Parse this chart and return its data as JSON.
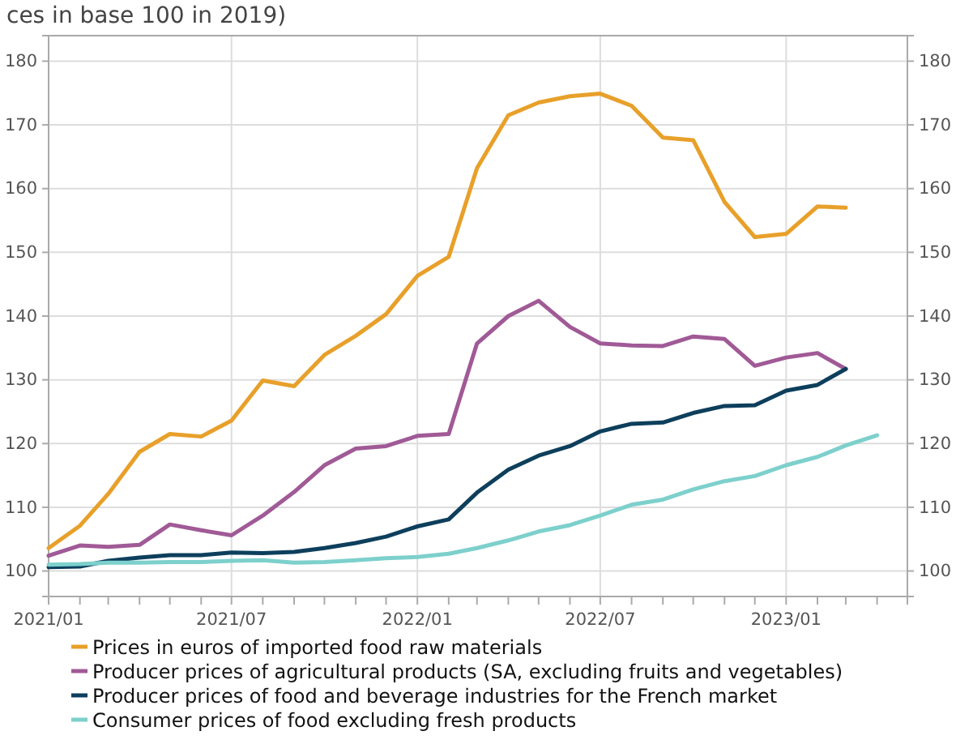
{
  "chart_data": {
    "type": "line",
    "title": "ces in base 100 in 2019)",
    "x": [
      "2021-01",
      "2021-02",
      "2021-03",
      "2021-04",
      "2021-05",
      "2021-06",
      "2021-07",
      "2021-08",
      "2021-09",
      "2021-10",
      "2021-11",
      "2021-12",
      "2022-01",
      "2022-02",
      "2022-03",
      "2022-04",
      "2022-05",
      "2022-06",
      "2022-07",
      "2022-08",
      "2022-09",
      "2022-10",
      "2022-11",
      "2022-12",
      "2023-01",
      "2023-02",
      "2023-03",
      "2023-04"
    ],
    "series": [
      {
        "name": "Prices in euros of imported food raw materials",
        "color": "#e8a02a",
        "values": [
          103.6,
          107.1,
          112.1,
          118.7,
          121.5,
          121.1,
          123.6,
          129.9,
          129.0,
          133.9,
          136.9,
          140.3,
          146.3,
          149.3,
          163.2,
          171.5,
          173.5,
          174.5,
          174.9,
          173.0,
          168.0,
          167.6,
          157.9,
          152.4,
          152.9,
          157.2,
          157.0,
          null
        ]
      },
      {
        "name": "Producer prices of agricultural products (SA, excluding fruits and vegetables)",
        "color": "#a05a96",
        "values": [
          102.4,
          104.0,
          103.8,
          104.1,
          107.3,
          106.4,
          105.6,
          108.7,
          112.4,
          116.6,
          119.2,
          119.6,
          121.2,
          121.5,
          135.7,
          140.0,
          142.4,
          138.3,
          135.7,
          135.4,
          135.3,
          136.8,
          136.4,
          132.2,
          133.5,
          134.2,
          131.7,
          null
        ]
      },
      {
        "name": "Producer prices of food and beverage industries for the French market",
        "color": "#0d3f5c",
        "values": [
          100.6,
          100.7,
          101.6,
          102.1,
          102.5,
          102.5,
          102.9,
          102.8,
          103.0,
          103.6,
          104.4,
          105.4,
          107.0,
          108.1,
          112.3,
          115.9,
          118.1,
          119.6,
          121.9,
          123.1,
          123.3,
          124.8,
          125.9,
          126.0,
          128.3,
          129.2,
          131.7,
          null
        ]
      },
      {
        "name": "Consumer prices of food excluding fresh products",
        "color": "#7dd0cc",
        "values": [
          101.0,
          101.1,
          101.3,
          101.3,
          101.4,
          101.4,
          101.6,
          101.7,
          101.3,
          101.4,
          101.7,
          102.0,
          102.2,
          102.7,
          103.6,
          104.8,
          106.2,
          107.2,
          108.7,
          110.4,
          111.2,
          112.8,
          114.1,
          114.9,
          116.6,
          117.9,
          119.7,
          121.3
        ]
      }
    ],
    "xlim": [
      "2021-01",
      "2023-05"
    ],
    "xticks": [
      {
        "value": "2021-01",
        "label": "2021/01"
      },
      {
        "value": "2021-02",
        "label": null
      },
      {
        "value": "2021-03",
        "label": null
      },
      {
        "value": "2021-04",
        "label": null
      },
      {
        "value": "2021-05",
        "label": null
      },
      {
        "value": "2021-06",
        "label": null
      },
      {
        "value": "2021-07",
        "label": "2021/07"
      },
      {
        "value": "2021-08",
        "label": null
      },
      {
        "value": "2021-09",
        "label": null
      },
      {
        "value": "2021-10",
        "label": null
      },
      {
        "value": "2021-11",
        "label": null
      },
      {
        "value": "2021-12",
        "label": null
      },
      {
        "value": "2022-01",
        "label": "2022/01"
      },
      {
        "value": "2022-02",
        "label": null
      },
      {
        "value": "2022-03",
        "label": null
      },
      {
        "value": "2022-04",
        "label": null
      },
      {
        "value": "2022-05",
        "label": null
      },
      {
        "value": "2022-06",
        "label": null
      },
      {
        "value": "2022-07",
        "label": "2022/07"
      },
      {
        "value": "2022-08",
        "label": null
      },
      {
        "value": "2022-09",
        "label": null
      },
      {
        "value": "2022-10",
        "label": null
      },
      {
        "value": "2022-11",
        "label": null
      },
      {
        "value": "2022-12",
        "label": null
      },
      {
        "value": "2023-01",
        "label": "2023/01"
      },
      {
        "value": "2023-02",
        "label": null
      },
      {
        "value": "2023-03",
        "label": null
      },
      {
        "value": "2023-04",
        "label": null
      },
      {
        "value": "2023-05",
        "label": null
      }
    ],
    "ylim": [
      96,
      184
    ],
    "yticks": [
      100,
      110,
      120,
      130,
      140,
      150,
      160,
      170,
      180
    ],
    "y2lim": [
      96,
      184
    ],
    "y2ticks": [
      100,
      110,
      120,
      130,
      140,
      150,
      160,
      170,
      180
    ],
    "grid": true,
    "legend": "bottom",
    "marker": "none",
    "line_style": "solid"
  }
}
